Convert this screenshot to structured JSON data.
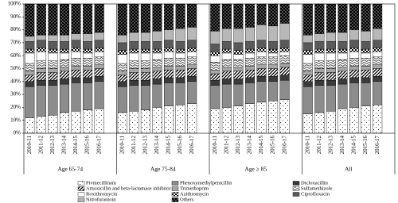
{
  "chart_data": {
    "type": "stacked_bar",
    "groups": [
      "Age 65-74",
      "Age 75-84",
      "Age ≥ 85",
      "All"
    ],
    "categories": [
      "2010-11",
      "2011-12",
      "2012-13",
      "2013-14",
      "2014-15",
      "2015-16",
      "2016-17"
    ],
    "ylim": [
      0,
      100
    ],
    "yticks": [
      {
        "value": 0,
        "label": "0%"
      },
      {
        "value": 10,
        "label": "10%"
      },
      {
        "value": 20,
        "label": "20%"
      },
      {
        "value": 30,
        "label": "30%"
      },
      {
        "value": 40,
        "label": "40%"
      },
      {
        "value": 50,
        "label": "50%"
      },
      {
        "value": 60,
        "label": "60%"
      },
      {
        "value": 70,
        "label": "70%"
      },
      {
        "value": 80,
        "label": "80%"
      },
      {
        "value": 90,
        "label": "90%"
      },
      {
        "value": 100,
        "label": "100%"
      }
    ],
    "series": [
      {
        "name": "Pivmecillinam",
        "color": "#ffffff",
        "pattern": "dots",
        "values": [
          [
            12,
            13,
            14,
            16,
            17,
            18,
            19
          ],
          [
            16,
            17,
            18,
            20,
            21,
            22,
            23
          ],
          [
            19,
            20,
            21,
            23,
            24,
            25,
            26
          ],
          [
            15,
            16,
            17,
            19,
            20,
            21,
            22
          ]
        ]
      },
      {
        "name": "Phenoxymethylpenicillin",
        "color": "#8c8c8c",
        "pattern": "solid",
        "values": [
          [
            24,
            24,
            23,
            22,
            22,
            21,
            21
          ],
          [
            20,
            20,
            19,
            18,
            18,
            17,
            17
          ],
          [
            18,
            18,
            17,
            16,
            16,
            15,
            15
          ],
          [
            21,
            21,
            20,
            19,
            19,
            18,
            18
          ]
        ]
      },
      {
        "name": "Dicloxacillin",
        "color": "#3a3a3a",
        "pattern": "solid",
        "values": [
          [
            4,
            4,
            4,
            4,
            4,
            4,
            4
          ],
          [
            4,
            4,
            4,
            4,
            4,
            4,
            4
          ],
          [
            4,
            4,
            4,
            4,
            4,
            4,
            4
          ],
          [
            4,
            4,
            4,
            4,
            4,
            4,
            4
          ]
        ]
      },
      {
        "name": "Amoxicillin and beta-lactamase inhibitor",
        "color": "#ffffff",
        "pattern": "stripes",
        "values": [
          [
            5,
            6,
            6,
            6,
            6,
            6,
            6
          ],
          [
            5,
            6,
            6,
            6,
            6,
            6,
            6
          ],
          [
            5,
            6,
            6,
            6,
            6,
            6,
            6
          ],
          [
            5,
            6,
            6,
            6,
            6,
            6,
            6
          ]
        ]
      },
      {
        "name": "Trimethoprim",
        "color": "#a6a6a6",
        "pattern": "solid",
        "values": [
          [
            3,
            3,
            3,
            3,
            3,
            3,
            3
          ],
          [
            3,
            3,
            3,
            3,
            3,
            3,
            3
          ],
          [
            3,
            3,
            3,
            3,
            3,
            3,
            3
          ],
          [
            3,
            3,
            3,
            3,
            3,
            3,
            3
          ]
        ]
      },
      {
        "name": "Sulfamethizole",
        "color": "#ffffff",
        "pattern": "bricks",
        "values": [
          [
            6,
            6,
            6,
            6,
            6,
            6,
            6
          ],
          [
            6,
            6,
            6,
            6,
            6,
            6,
            6
          ],
          [
            6,
            6,
            6,
            6,
            6,
            6,
            6
          ],
          [
            6,
            6,
            6,
            6,
            6,
            6,
            6
          ]
        ]
      },
      {
        "name": "Roxithromycin",
        "color": "#ffffff",
        "pattern": "solid",
        "values": [
          [
            8,
            7,
            6,
            5,
            5,
            4,
            4
          ],
          [
            7,
            6,
            6,
            5,
            5,
            4,
            4
          ],
          [
            5,
            5,
            4,
            4,
            4,
            3,
            3
          ],
          [
            7,
            6,
            6,
            5,
            5,
            4,
            4
          ]
        ]
      },
      {
        "name": "Azithromycin",
        "color": "#ffffff",
        "pattern": "checker",
        "values": [
          [
            3,
            3,
            3,
            3,
            3,
            3,
            3
          ],
          [
            3,
            3,
            3,
            3,
            3,
            3,
            3
          ],
          [
            3,
            3,
            3,
            3,
            3,
            3,
            3
          ],
          [
            3,
            3,
            3,
            3,
            3,
            3,
            3
          ]
        ]
      },
      {
        "name": "Ciprofloxacin",
        "color": "#5a5a5a",
        "pattern": "solid",
        "values": [
          [
            6,
            6,
            6,
            6,
            6,
            6,
            6
          ],
          [
            6,
            6,
            6,
            6,
            6,
            6,
            6
          ],
          [
            6,
            6,
            6,
            6,
            6,
            6,
            6
          ],
          [
            6,
            6,
            6,
            6,
            6,
            6,
            6
          ]
        ]
      },
      {
        "name": "Nitrofurantoin",
        "color": "#b8b8b8",
        "pattern": "solid",
        "values": [
          [
            4,
            4,
            5,
            5,
            5,
            6,
            6
          ],
          [
            6,
            7,
            7,
            8,
            8,
            10,
            10
          ],
          [
            10,
            10,
            11,
            11,
            12,
            12,
            13
          ],
          [
            6,
            6,
            7,
            7,
            8,
            8,
            9
          ]
        ]
      },
      {
        "name": "Others",
        "color": "#000000",
        "pattern": "whitedots",
        "values": [
          [
            25,
            24,
            24,
            24,
            23,
            23,
            22
          ],
          [
            24,
            22,
            22,
            21,
            20,
            19,
            18
          ],
          [
            21,
            19,
            19,
            18,
            16,
            17,
            15
          ],
          [
            24,
            23,
            22,
            22,
            20,
            21,
            19
          ]
        ]
      }
    ]
  }
}
